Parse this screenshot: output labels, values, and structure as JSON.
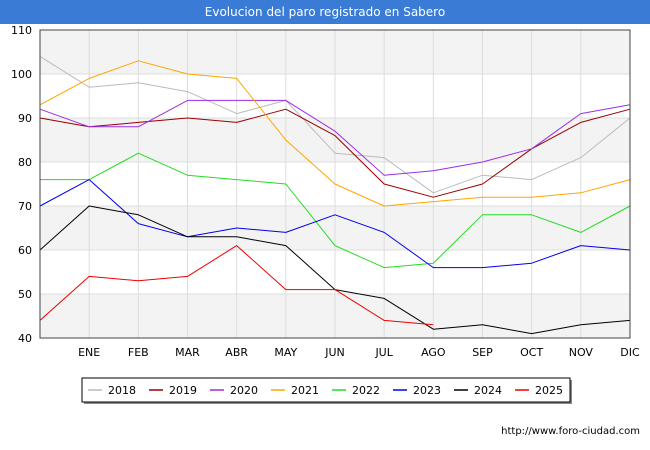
{
  "page": {
    "title": "Evolucion del paro registrado en Sabero",
    "credit": "http://www.foro-ciudad.com"
  },
  "chart_data": {
    "type": "line",
    "title": "Evolucion del paro registrado en Sabero",
    "xlabel": "",
    "ylabel": "",
    "ylim": [
      40,
      110
    ],
    "yticks": [
      40,
      50,
      60,
      70,
      80,
      90,
      100,
      110
    ],
    "grid": true,
    "legend_position": "bottom",
    "categories": [
      "",
      "ENE",
      "FEB",
      "MAR",
      "ABR",
      "MAY",
      "JUN",
      "JUL",
      "AGO",
      "SEP",
      "OCT",
      "NOV",
      "DIC"
    ],
    "series": [
      {
        "name": "2018",
        "color": "#bbbbbb",
        "values": [
          104,
          97,
          98,
          96,
          91,
          94,
          82,
          81,
          73,
          77,
          76,
          81,
          90
        ]
      },
      {
        "name": "2019",
        "color": "#990000",
        "values": [
          90,
          88,
          89,
          90,
          89,
          92,
          86,
          75,
          72,
          75,
          83,
          89,
          92
        ]
      },
      {
        "name": "2020",
        "color": "#9a2ee6",
        "values": [
          92,
          88,
          88,
          94,
          94,
          94,
          87,
          77,
          78,
          80,
          83,
          91,
          93
        ]
      },
      {
        "name": "2021",
        "color": "#ffa500",
        "values": [
          93,
          99,
          103,
          100,
          99,
          85,
          75,
          70,
          71,
          72,
          72,
          73,
          76
        ]
      },
      {
        "name": "2022",
        "color": "#22dd22",
        "values": [
          76,
          76,
          82,
          77,
          76,
          75,
          61,
          56,
          57,
          68,
          68,
          64,
          70
        ]
      },
      {
        "name": "2023",
        "color": "#0000ee",
        "values": [
          70,
          76,
          66,
          63,
          65,
          64,
          68,
          64,
          56,
          56,
          57,
          61,
          60
        ]
      },
      {
        "name": "2024",
        "color": "#000000",
        "values": [
          60,
          70,
          68,
          63,
          63,
          61,
          51,
          49,
          42,
          43,
          41,
          43,
          44
        ]
      },
      {
        "name": "2025",
        "color": "#ee0000",
        "values": [
          44,
          54,
          53,
          54,
          61,
          51,
          51,
          44,
          43,
          null,
          null,
          null,
          null
        ]
      }
    ]
  }
}
